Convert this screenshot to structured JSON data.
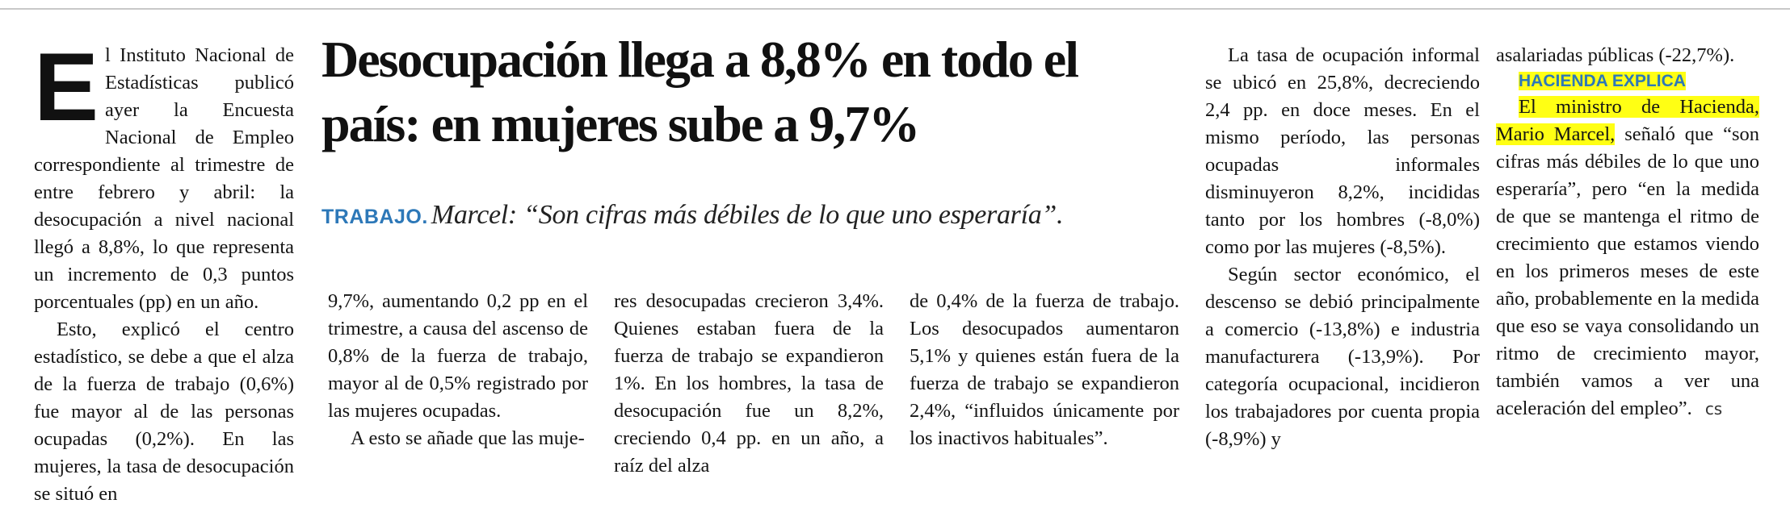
{
  "headline": "Desocupación llega a 8,8% en todo el país: en mujeres sube a 9,7%",
  "kicker": "TRABAJO.",
  "deck": "Marcel: “Son cifras más débiles de lo que uno esperaría”.",
  "col1": {
    "dropcap": "E",
    "p1": "l Instituto Nacional de Estadísticas publicó ayer la Encuesta Nacional de Empleo correspondiente al trimestre de entre febrero y abril: la desocupación a nivel nacional llegó a 8,8%, lo que representa un incremento de 0,3 puntos porcentuales (pp) en un año.",
    "p2": "Esto, explicó el centro estadístico, se debe a que el alza de la fuerza de trabajo (0,6%) fue mayor al de las personas ocupadas (0,2%). En las mujeres, la tasa de desocupación se situó en"
  },
  "col2": {
    "p1": "9,7%, aumentando 0,2 pp en el trimestre, a causa del ascenso de 0,8% de la fuerza de trabajo, mayor al de 0,5% registrado por las mujeres ocupadas.",
    "p2": "A esto se añade que las muje-"
  },
  "col3": {
    "p1": "res desocupadas crecieron 3,4%. Quienes estaban fuera de la fuerza de trabajo se expandieron 1%. En los hombres, la tasa de desocupación fue un 8,2%, creciendo 0,4 pp. en un año, a raíz del alza"
  },
  "col4": {
    "p1": "de 0,4% de la fuerza de trabajo. Los desocupados aumentaron 5,1% y quienes están fuera de la fuerza de trabajo se expandieron 2,4%, “influidos únicamente por los inactivos habituales”."
  },
  "col5": {
    "p1": "La tasa de ocupación informal se ubicó en 25,8%, decreciendo 2,4 pp. en doce meses. En el mismo período, las personas ocupadas informales disminuyeron 8,2%, incididas tanto por los hombres (-8,0%) como por las mujeres (-8,5%).",
    "p2": "Según sector económico, el descenso se debió principalmente a comercio (-13,8%) e industria manufacturera (-13,9%). Por categoría ocupacional, incidieron los trabajadores por cuenta propia (-8,9%) y"
  },
  "col6": {
    "p1": "asalariadas públicas (-22,7%).",
    "subtitle": "HACIENDA EXPLICA",
    "p2_highlight": "El ministro de Hacienda, Mario Marcel,",
    "p2_rest": " señaló que “son cifras más débiles de lo que uno esperaría”, pero “en la medida de que se mantenga el ritmo de crecimiento que estamos viendo en los primeros meses de este año, probablemente en la medida que eso se vaya consolidando un ritmo de crecimiento mayor, también vamos a ver una aceleración del empleo”.",
    "end_mark": "cs"
  }
}
